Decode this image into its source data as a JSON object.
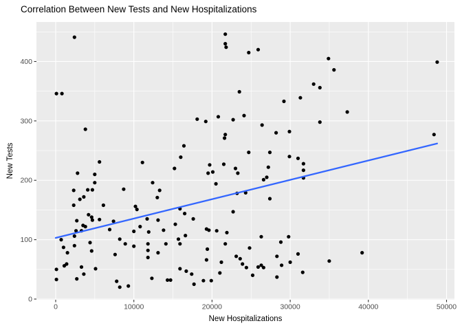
{
  "title": "Correlation Between New Tests and New Hospitalizations",
  "chart_data": {
    "type": "scatter",
    "title": "Correlation Between New Tests and New Hospitalizations",
    "xlabel": "New Hospitalizations",
    "ylabel": "New Tests",
    "x_ticks": [
      0,
      10000,
      20000,
      30000,
      40000,
      50000
    ],
    "x_minor_ticks": [
      5000,
      15000,
      25000,
      35000,
      45000
    ],
    "y_ticks": [
      0,
      100,
      200,
      300,
      400
    ],
    "y_minor_ticks": [
      50,
      150,
      250,
      350,
      450
    ],
    "xlim": [
      -2500,
      51300
    ],
    "ylim": [
      -2,
      467
    ],
    "grid": "white major and minor gridlines on grey panel",
    "legend_position": "none",
    "panel_color": "#EBEBEB",
    "grid_color": "#FFFFFF",
    "point_color": "#000000",
    "tick_color": "#333333",
    "tick_label_color": "#4D4D4D",
    "trend_color": "#3366FF",
    "trend_line": {
      "x0": 0,
      "y0": 103,
      "x1": 48800,
      "y1": 262
    },
    "points": [
      [
        21700,
        446
      ],
      [
        2400,
        441
      ],
      [
        21700,
        430
      ],
      [
        21800,
        424
      ],
      [
        25900,
        420
      ],
      [
        24700,
        415
      ],
      [
        34900,
        405
      ],
      [
        48800,
        399
      ],
      [
        35600,
        386
      ],
      [
        33000,
        362
      ],
      [
        33800,
        356
      ],
      [
        23500,
        349
      ],
      [
        100,
        346
      ],
      [
        800,
        346
      ],
      [
        31300,
        339
      ],
      [
        29200,
        333
      ],
      [
        37300,
        315
      ],
      [
        24100,
        309
      ],
      [
        20800,
        307
      ],
      [
        18100,
        303
      ],
      [
        22700,
        302
      ],
      [
        19200,
        299
      ],
      [
        33800,
        298
      ],
      [
        26400,
        293
      ],
      [
        3800,
        286
      ],
      [
        29900,
        282
      ],
      [
        28200,
        280
      ],
      [
        21700,
        277
      ],
      [
        48400,
        277
      ],
      [
        21600,
        271
      ],
      [
        16400,
        258
      ],
      [
        24700,
        247
      ],
      [
        27400,
        247
      ],
      [
        29900,
        240
      ],
      [
        16000,
        239
      ],
      [
        31000,
        237
      ],
      [
        5600,
        231
      ],
      [
        11100,
        230
      ],
      [
        31700,
        228
      ],
      [
        19700,
        226
      ],
      [
        21500,
        227
      ],
      [
        27200,
        222
      ],
      [
        15200,
        220
      ],
      [
        23000,
        220
      ],
      [
        31700,
        217
      ],
      [
        20100,
        214
      ],
      [
        23300,
        212
      ],
      [
        19500,
        212
      ],
      [
        2800,
        212
      ],
      [
        5000,
        210
      ],
      [
        31700,
        204
      ],
      [
        27000,
        205
      ],
      [
        26600,
        201
      ],
      [
        5000,
        196
      ],
      [
        12400,
        196
      ],
      [
        20500,
        194
      ],
      [
        8700,
        185
      ],
      [
        4700,
        184
      ],
      [
        4100,
        184
      ],
      [
        13300,
        183
      ],
      [
        2300,
        183
      ],
      [
        24300,
        179
      ],
      [
        23200,
        178
      ],
      [
        3600,
        172
      ],
      [
        13000,
        171
      ],
      [
        27400,
        169
      ],
      [
        3100,
        168
      ],
      [
        6100,
        158
      ],
      [
        2300,
        158
      ],
      [
        10200,
        156
      ],
      [
        15900,
        152
      ],
      [
        10400,
        151
      ],
      [
        22700,
        147
      ],
      [
        16500,
        144
      ],
      [
        4200,
        142
      ],
      [
        4600,
        138
      ],
      [
        17600,
        135
      ],
      [
        11700,
        135
      ],
      [
        5600,
        134
      ],
      [
        13100,
        133
      ],
      [
        4700,
        133
      ],
      [
        2700,
        132
      ],
      [
        7400,
        131
      ],
      [
        15300,
        126
      ],
      [
        3500,
        124
      ],
      [
        3800,
        122
      ],
      [
        10800,
        122
      ],
      [
        19300,
        118
      ],
      [
        6900,
        117
      ],
      [
        13800,
        116
      ],
      [
        19600,
        116
      ],
      [
        2600,
        115
      ],
      [
        3300,
        115
      ],
      [
        20600,
        115
      ],
      [
        10000,
        114
      ],
      [
        11900,
        113
      ],
      [
        21900,
        112
      ],
      [
        16600,
        107
      ],
      [
        2400,
        106
      ],
      [
        26300,
        105
      ],
      [
        29800,
        105
      ],
      [
        8200,
        101
      ],
      [
        15700,
        101
      ],
      [
        700,
        100
      ],
      [
        28800,
        96
      ],
      [
        4400,
        95
      ],
      [
        8900,
        93
      ],
      [
        11800,
        93
      ],
      [
        14100,
        93
      ],
      [
        15900,
        93
      ],
      [
        21700,
        93
      ],
      [
        2400,
        90
      ],
      [
        10000,
        89
      ],
      [
        1000,
        87
      ],
      [
        24800,
        86
      ],
      [
        19400,
        84
      ],
      [
        11800,
        82
      ],
      [
        4600,
        81
      ],
      [
        1500,
        78
      ],
      [
        13100,
        78
      ],
      [
        39200,
        78
      ],
      [
        31000,
        76
      ],
      [
        7600,
        75
      ],
      [
        23100,
        72
      ],
      [
        28300,
        72
      ],
      [
        11800,
        70
      ],
      [
        23600,
        68
      ],
      [
        19300,
        66
      ],
      [
        30000,
        62
      ],
      [
        21200,
        62
      ],
      [
        23900,
        59
      ],
      [
        1400,
        59
      ],
      [
        26300,
        57
      ],
      [
        28900,
        57
      ],
      [
        1100,
        56
      ],
      [
        3300,
        54
      ],
      [
        25900,
        54
      ],
      [
        26600,
        53
      ],
      [
        24400,
        53
      ],
      [
        5100,
        51
      ],
      [
        100,
        50
      ],
      [
        15900,
        51
      ],
      [
        16700,
        47
      ],
      [
        31600,
        45
      ],
      [
        21000,
        44
      ],
      [
        17400,
        42
      ],
      [
        3600,
        42
      ],
      [
        25200,
        40
      ],
      [
        12300,
        35
      ],
      [
        28300,
        37
      ],
      [
        2700,
        34
      ],
      [
        100,
        33
      ],
      [
        14300,
        32
      ],
      [
        14700,
        32
      ],
      [
        18900,
        31
      ],
      [
        19900,
        31
      ],
      [
        7800,
        30
      ],
      [
        17700,
        25
      ],
      [
        9300,
        22
      ],
      [
        8200,
        20
      ],
      [
        35000,
        64
      ]
    ]
  }
}
